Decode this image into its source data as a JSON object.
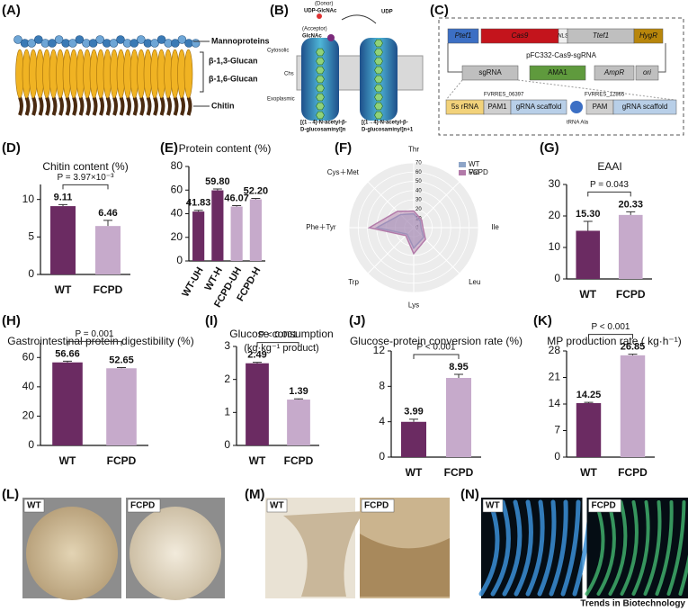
{
  "figure": {
    "footer": "Trends in Biotechnology"
  },
  "diagram_a": {
    "panel": "(A)",
    "labels": [
      "Mannoproteins",
      "β-1,3-Glucan",
      "β-1,6-Glucan",
      "Chitin"
    ]
  },
  "diagram_b": {
    "panel": "(B)",
    "donor": "(Donor)",
    "donor_name": "UDP-GlcNAc",
    "acceptor": "(Acceptor)",
    "acceptor_name": "GlcNAc",
    "udp": "UDP",
    "cytosolic": "Cytosolic",
    "chs": "Chs",
    "exoplasmic": "Exoplasmic",
    "product_left": [
      "[(1→4)-N-acetyl-β-",
      "D-glucosaminyl]n"
    ],
    "product_right": [
      "[(1→4)-N-acetyl-β-",
      "D-glucosaminyl]n+1"
    ]
  },
  "diagram_c": {
    "panel": "(C)",
    "row1": [
      "Ptef1",
      "Cas9",
      "NLS",
      "Ttef1",
      "HygR"
    ],
    "plasmid": "pFC332-Cas9-sgRNA",
    "row2": [
      "sgRNA",
      "AMA1",
      "AmpR",
      "ori"
    ],
    "row3": [
      "5s rRNA",
      "PAM1",
      "gRNA scaffold",
      "PAM",
      "gRNA scaffold"
    ],
    "site1": "FVRRES_06397",
    "site2": "FVRRES_12865",
    "trna": "tRNA Ala"
  },
  "chart_data": [
    {
      "type": "bar",
      "panel": "(D)",
      "title": "Chitin content (%)",
      "categories": [
        "WT",
        "FCPD"
      ],
      "values": [
        9.11,
        6.46
      ],
      "errors": [
        0.2,
        0.75
      ],
      "colors": [
        "#6b2b62",
        "#c6aacb"
      ],
      "ylim": [
        0,
        12
      ],
      "yticks": [
        0,
        5,
        10
      ],
      "annotation": "P = 3.97×10⁻³"
    },
    {
      "type": "bar",
      "panel": "(E)",
      "title": "Protein content (%)",
      "categories": [
        "WT-UH",
        "WT-H",
        "FCPD-UH",
        "FCPD-H"
      ],
      "values": [
        41.83,
        59.8,
        46.07,
        52.2
      ],
      "value_labels": [
        "41.83",
        "59.80",
        "46.07",
        "52.20"
      ],
      "errors": [
        1,
        1.2,
        0.8,
        0.8
      ],
      "colors": [
        "#6b2b62",
        "#6b2b62",
        "#c6aacb",
        "#c6aacb"
      ],
      "ylim": [
        0,
        80
      ],
      "yticks": [
        0,
        20,
        40,
        60,
        80
      ]
    },
    {
      "type": "radar",
      "panel": "(F)",
      "axes": [
        "Thr",
        "Val",
        "Ile",
        "Leu",
        "Lys",
        "Trp",
        "Phe＋Tyr",
        "Cys＋Met"
      ],
      "rlim": [
        0,
        70
      ],
      "rticks": [
        0,
        10,
        20,
        30,
        40,
        50,
        60,
        70
      ],
      "series": [
        {
          "name": "WT",
          "color": "#8ea5c8",
          "values": [
            15,
            10,
            8,
            15,
            22,
            10,
            40,
            20
          ]
        },
        {
          "name": "FCPD",
          "color": "#b27aa9",
          "values": [
            18,
            12,
            10,
            18,
            28,
            12,
            48,
            25
          ]
        }
      ]
    },
    {
      "type": "bar",
      "panel": "(G)",
      "title": "EAAI",
      "categories": [
        "WT",
        "FCPD"
      ],
      "values": [
        15.3,
        20.33
      ],
      "value_labels": [
        "15.30",
        "20.33"
      ],
      "errors": [
        3,
        1
      ],
      "colors": [
        "#6b2b62",
        "#c6aacb"
      ],
      "ylim": [
        0,
        30
      ],
      "yticks": [
        0,
        10,
        20,
        30
      ],
      "annotation": "P = 0.043"
    },
    {
      "type": "bar",
      "panel": "(H)",
      "title": "Gastrointestinal protein digestibility (%)",
      "categories": [
        "WT",
        "FCPD"
      ],
      "values": [
        56.66,
        52.65
      ],
      "errors": [
        0.8,
        0.5
      ],
      "colors": [
        "#6b2b62",
        "#c6aacb"
      ],
      "ylim": [
        0,
        70
      ],
      "yticks": [
        0,
        20,
        40,
        60
      ],
      "annotation": "P = 0.001"
    },
    {
      "type": "bar",
      "panel": "(I)",
      "title": "Glucose consumption",
      "subtitle": "(kg·kg⁻¹ product)",
      "categories": [
        "WT",
        "FCPD"
      ],
      "values": [
        2.49,
        1.39
      ],
      "errors": [
        0.03,
        0.02
      ],
      "colors": [
        "#6b2b62",
        "#c6aacb"
      ],
      "ylim": [
        0,
        3
      ],
      "yticks": [
        0,
        1,
        2,
        3
      ],
      "annotation": "P < 0.001"
    },
    {
      "type": "bar",
      "panel": "(J)",
      "title": "Glucose-protein conversion rate (%)",
      "categories": [
        "WT",
        "FCPD"
      ],
      "values": [
        3.99,
        8.95
      ],
      "errors": [
        0.3,
        0.4
      ],
      "colors": [
        "#6b2b62",
        "#c6aacb"
      ],
      "ylim": [
        0,
        12
      ],
      "yticks": [
        0,
        4,
        8,
        12
      ],
      "annotation": "P < 0.001"
    },
    {
      "type": "bar",
      "panel": "(K)",
      "title": "MP production rate ( kg·h⁻¹)",
      "categories": [
        "WT",
        "FCPD"
      ],
      "values": [
        14.25,
        26.85
      ],
      "errors": [
        0.2,
        0.3
      ],
      "colors": [
        "#6b2b62",
        "#c6aacb"
      ],
      "ylim": [
        0,
        28
      ],
      "yticks": [
        0,
        7,
        14,
        21,
        28
      ],
      "annotation": "P < 0.001"
    }
  ],
  "photos": [
    {
      "panel": "(L)",
      "labels": [
        "WT",
        "FCPD"
      ]
    },
    {
      "panel": "(M)",
      "labels": [
        "WT",
        "FCPD"
      ]
    },
    {
      "panel": "(N)",
      "labels": [
        "WT",
        "FCPD"
      ]
    }
  ]
}
